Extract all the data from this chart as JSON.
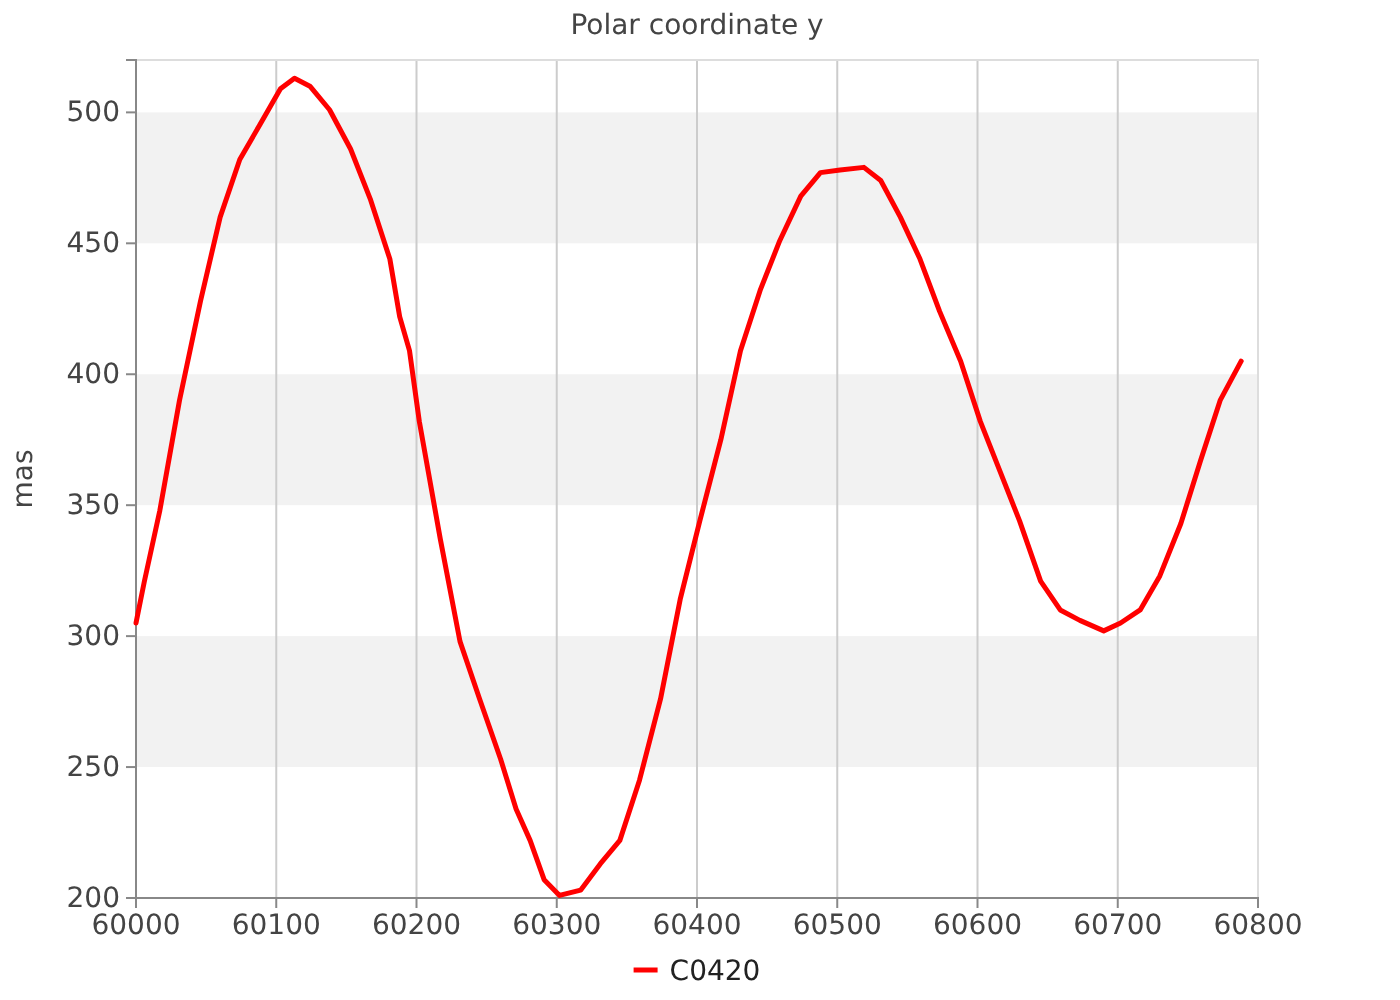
{
  "chart_data": {
    "type": "line",
    "title": "Polar coordinate y",
    "ylabel": "mas",
    "x": [
      60000,
      60006,
      60017,
      60031,
      60046,
      60060,
      60074,
      60088,
      60103,
      60113,
      60124,
      60138,
      60153,
      60167,
      60181,
      60188,
      60195,
      60202,
      60217,
      60231,
      60245,
      60260,
      60271,
      60281,
      60291,
      60302,
      60317,
      60331,
      60345,
      60359,
      60374,
      60388,
      60402,
      60417,
      60431,
      60445,
      60459,
      60474,
      60488,
      60502,
      60519,
      60531,
      60545,
      60559,
      60573,
      60588,
      60602,
      60616,
      60630,
      60645,
      60659,
      60673,
      60690,
      60702,
      60716,
      60730,
      60745,
      60759,
      60773,
      60788
    ],
    "series": [
      {
        "name": "C0420",
        "color": "#ff0000",
        "values": [
          305,
          321,
          348,
          390,
          428,
          460,
          482,
          495,
          509,
          513,
          510,
          501,
          486,
          467,
          444,
          422,
          409,
          382,
          337,
          298,
          276,
          253,
          234,
          222,
          207,
          201,
          203,
          213,
          222,
          245,
          276,
          314,
          344,
          375,
          409,
          432,
          451,
          468,
          477,
          478,
          479,
          474,
          460,
          444,
          424,
          405,
          382,
          363,
          344,
          321,
          310,
          306,
          302,
          305,
          310,
          323,
          343,
          367,
          390,
          405
        ]
      }
    ],
    "xlim": [
      60000,
      60800
    ],
    "xticks": [
      60000,
      60100,
      60200,
      60300,
      60400,
      60500,
      60600,
      60700,
      60800
    ],
    "ylim": [
      200,
      520
    ],
    "yticks": [
      200,
      250,
      300,
      350,
      400,
      450,
      500
    ],
    "bands": [
      {
        "axis": "y",
        "from": 250,
        "to": 300,
        "color": "#f2f2f2"
      },
      {
        "axis": "y",
        "from": 350,
        "to": 400,
        "color": "#f2f2f2"
      },
      {
        "axis": "y",
        "from": 450,
        "to": 500,
        "color": "#f2f2f2"
      }
    ],
    "grid": "x",
    "legend": "bottom",
    "marker": "none",
    "line_style": "solid"
  }
}
